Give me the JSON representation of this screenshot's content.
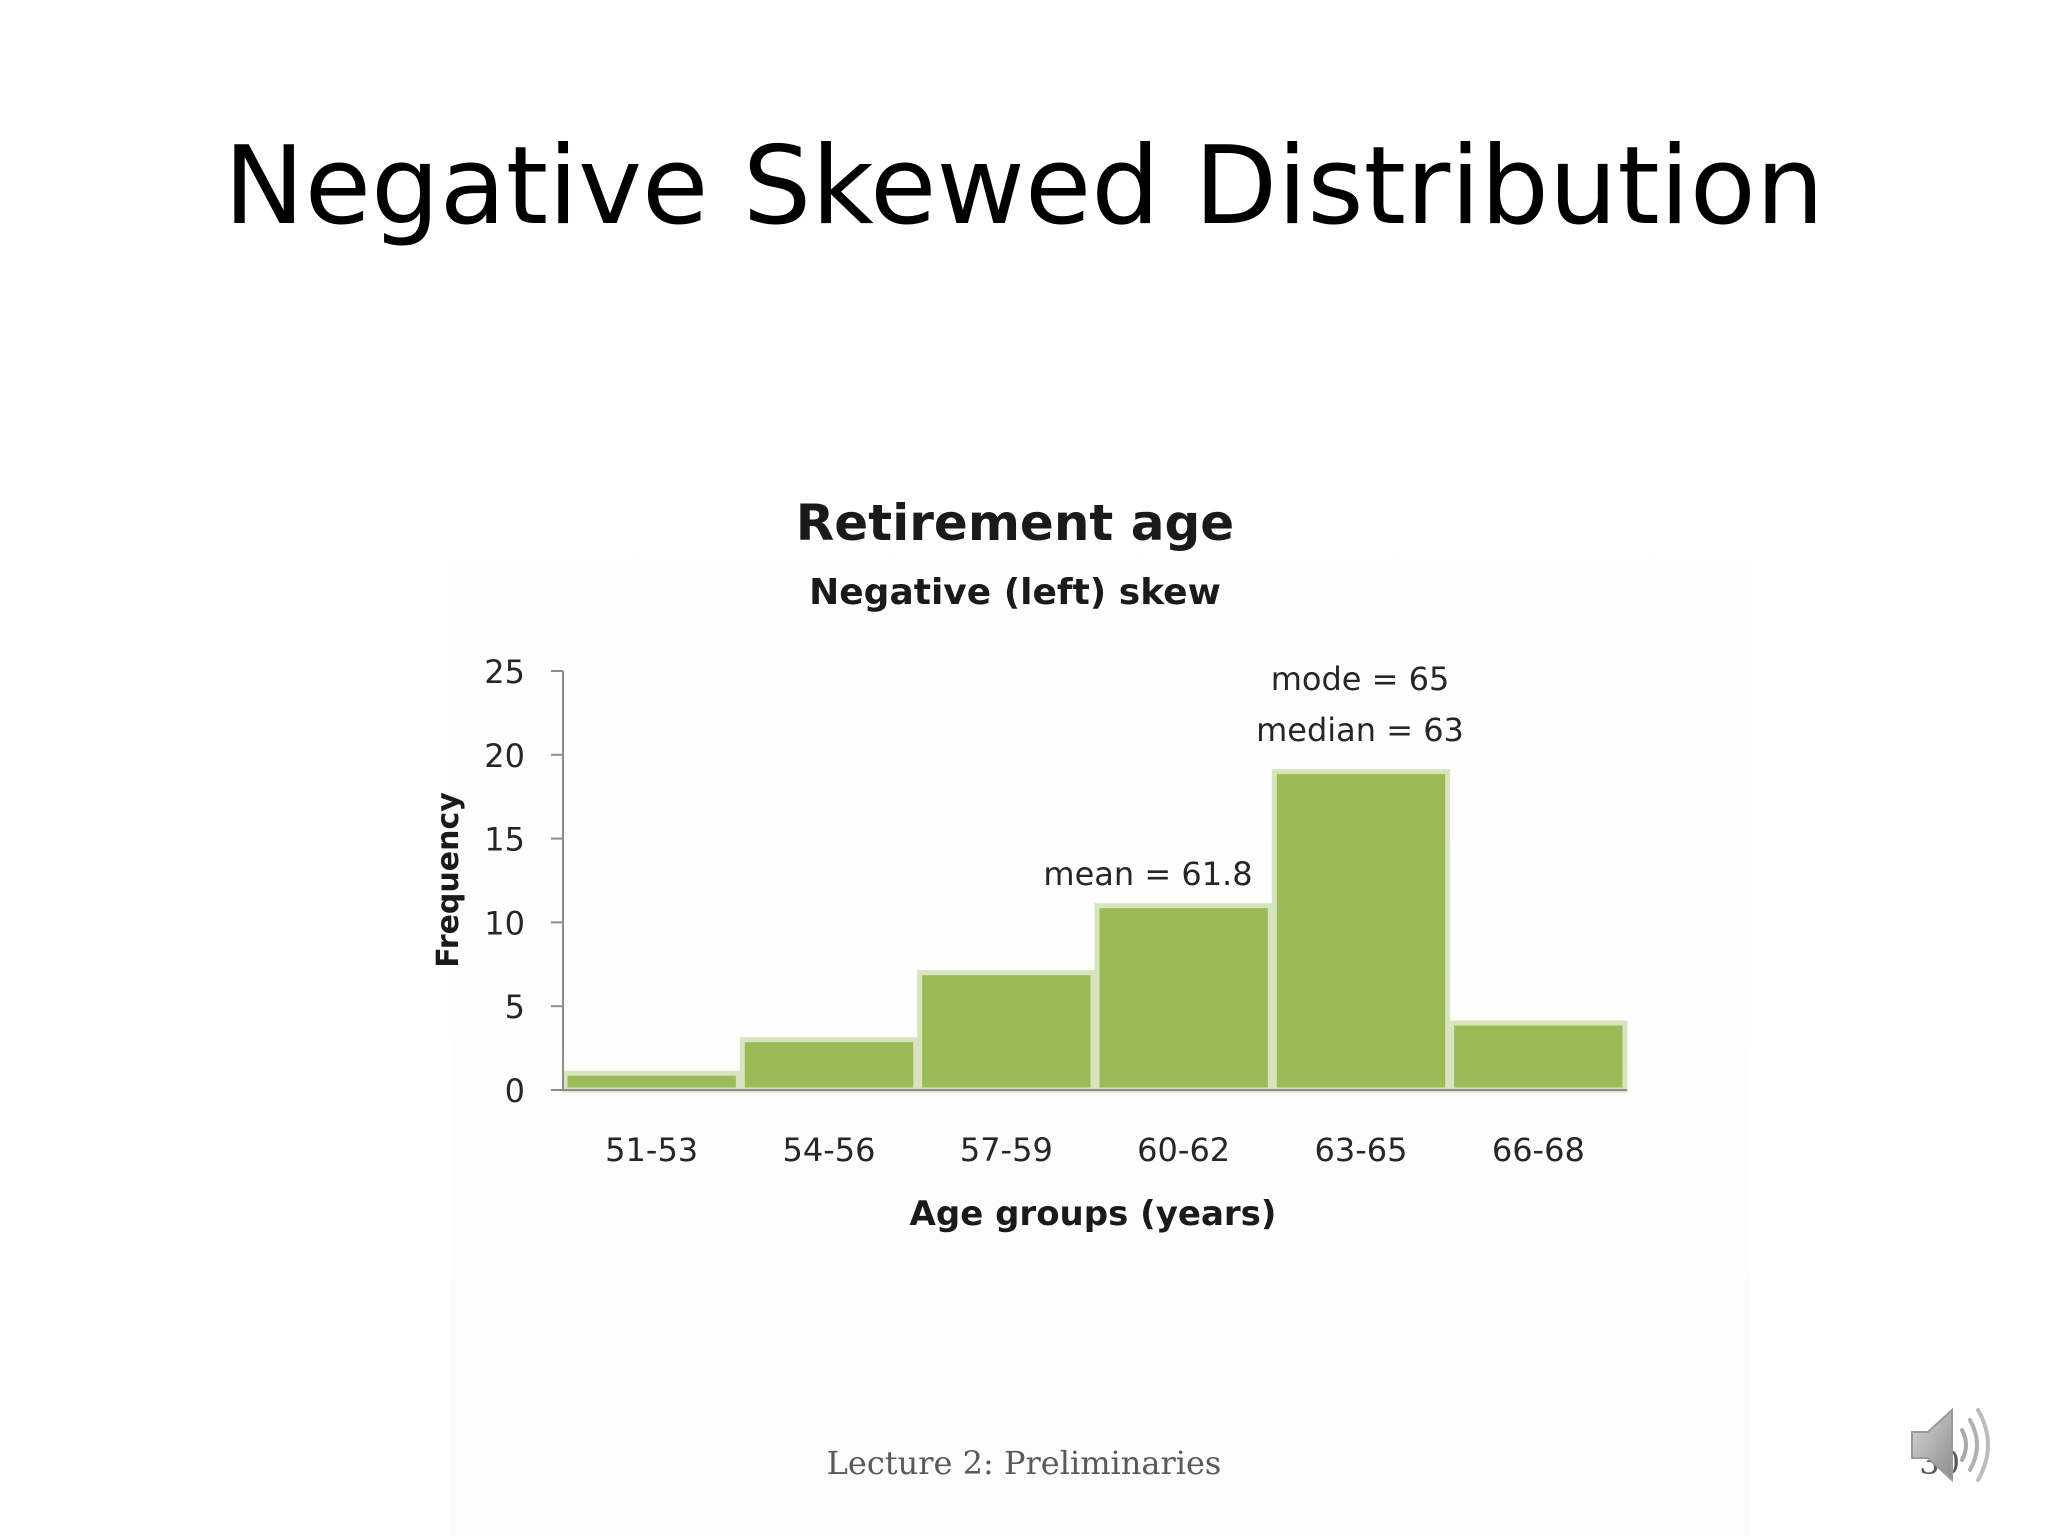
{
  "slide": {
    "title": "Negative Skewed Distribution",
    "footer": "Lecture 2: Preliminaries",
    "page_number": "30",
    "audio_icon": "speaker-icon"
  },
  "chart_data": {
    "type": "bar",
    "title": "Retirement age",
    "subtitle": "Negative (left) skew",
    "xlabel": "Age groups (years)",
    "ylabel": "Frequency",
    "categories": [
      "51-53",
      "54-56",
      "57-59",
      "60-62",
      "63-65",
      "66-68"
    ],
    "values": [
      1,
      3,
      7,
      11,
      19,
      4
    ],
    "ylim": [
      0,
      25
    ],
    "yticks": [
      0,
      5,
      10,
      15,
      20,
      25
    ],
    "grid": false,
    "bar_color": "#9bbb59",
    "bar_edge_color": "#d7e4bd",
    "annotations": [
      {
        "text": "mean = 61.8"
      },
      {
        "text": "mode = 65"
      },
      {
        "text": "median = 63"
      }
    ]
  }
}
